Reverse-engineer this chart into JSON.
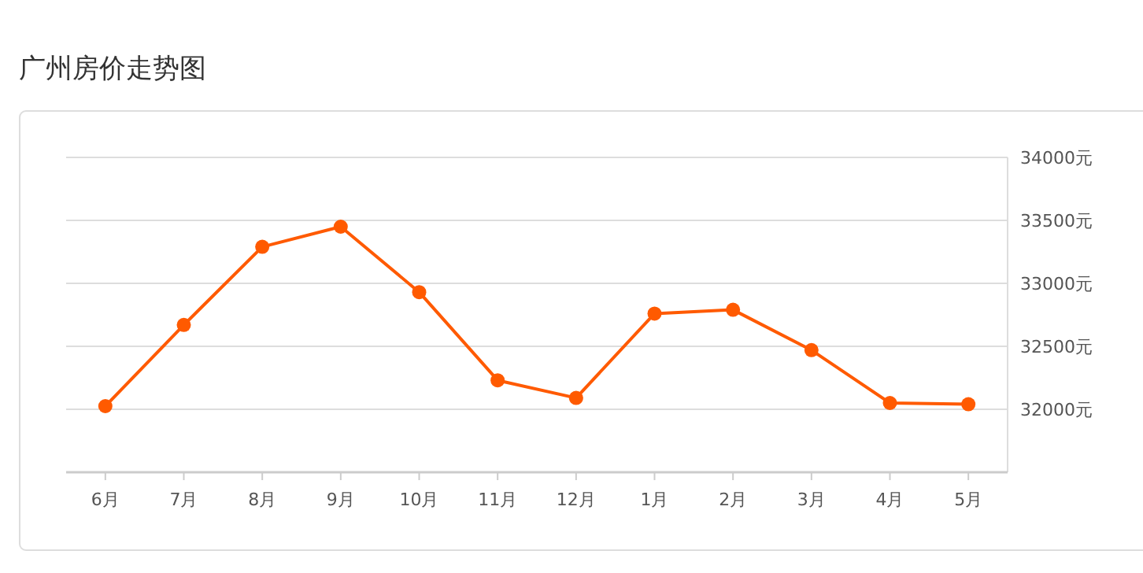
{
  "chart_data": {
    "type": "line",
    "title": "广州房价走势图",
    "categories": [
      "6月",
      "7月",
      "8月",
      "9月",
      "10月",
      "11月",
      "12月",
      "1月",
      "2月",
      "3月",
      "4月",
      "5月"
    ],
    "series": [
      {
        "color": "#ff5a00",
        "values": [
          32025,
          32670,
          33290,
          33450,
          32930,
          32230,
          32090,
          32760,
          32790,
          32470,
          32050,
          32040
        ]
      }
    ],
    "ylim": [
      31500,
      34000
    ],
    "yticks": [
      {
        "value": 32000,
        "label": "32000元"
      },
      {
        "value": 32500,
        "label": "32500元"
      },
      {
        "value": 33000,
        "label": "33000元"
      },
      {
        "value": 33500,
        "label": "33500元"
      },
      {
        "value": 34000,
        "label": "34000元"
      }
    ],
    "grid": "y",
    "marker": "circle",
    "line_style": "solid"
  }
}
